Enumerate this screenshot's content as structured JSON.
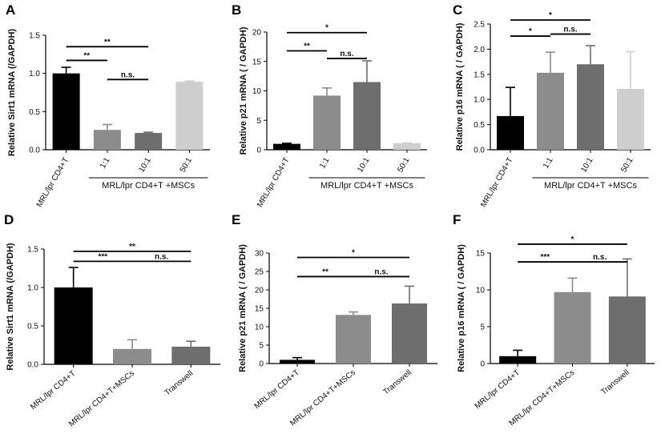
{
  "chart_data": [
    {
      "panel": "A",
      "type": "bar",
      "ylabel": "Relative Sirt1 mRNA (/GAPDH)",
      "yticks": [
        "0.0",
        "0.5",
        "1.0",
        "1.5"
      ],
      "ylim": [
        0,
        1.5
      ],
      "categories": [
        "MRL/lpr CD4+T",
        "1:1",
        "10:1",
        "50:1"
      ],
      "values": [
        1.0,
        0.26,
        0.22,
        0.89
      ],
      "errors": [
        0.08,
        0.07,
        0.01,
        0.01
      ],
      "colors": [
        "#000000",
        "#8c8c8c",
        "#6e6e6e",
        "#cfcfcf"
      ],
      "group_label": "MRL/lpr CD4+T +MSCs",
      "brackets": [
        {
          "from": 0,
          "to": 1,
          "y": 1.17,
          "label": "**"
        },
        {
          "from": 0,
          "to": 2,
          "y": 1.35,
          "label": "**"
        },
        {
          "from": 1,
          "to": 2,
          "y": 0.92,
          "label": "n.s."
        }
      ]
    },
    {
      "panel": "B",
      "type": "bar",
      "ylabel": "Relative p21 mRNA  ( / GAPDH)",
      "yticks": [
        "0",
        "5",
        "10",
        "15",
        "20"
      ],
      "ylim": [
        0,
        20
      ],
      "categories": [
        "MRL/lpr CD4+T",
        "1:1",
        "10:1",
        "50:1"
      ],
      "values": [
        1.0,
        9.2,
        11.5,
        1.1
      ],
      "errors": [
        0.1,
        1.3,
        3.6,
        0.05
      ],
      "colors": [
        "#000000",
        "#8c8c8c",
        "#6e6e6e",
        "#cfcfcf"
      ],
      "group_label": "MRL/lpr CD4+T +MSCs",
      "brackets": [
        {
          "from": 0,
          "to": 1,
          "y": 16.8,
          "label": "**"
        },
        {
          "from": 0,
          "to": 2,
          "y": 19.9,
          "label": "*"
        },
        {
          "from": 1,
          "to": 2,
          "y": 15.5,
          "label": "n.s."
        }
      ]
    },
    {
      "panel": "C",
      "type": "bar",
      "ylabel": "Relative p16 mRNA  ( / GAPDH)",
      "yticks": [
        "0.0",
        "0.5",
        "1.0",
        "1.5",
        "2.0",
        "2.5"
      ],
      "ylim": [
        0,
        2.5
      ],
      "categories": [
        "MRL/lpr CD4+T",
        "1:1",
        "10:1",
        "50:1"
      ],
      "values": [
        0.67,
        1.53,
        1.7,
        1.21
      ],
      "errors": [
        0.57,
        0.41,
        0.37,
        0.74
      ],
      "colors": [
        "#000000",
        "#8c8c8c",
        "#6e6e6e",
        "#cfcfcf"
      ],
      "group_label": "MRL/lpr CD4+T +MSCs",
      "brackets": [
        {
          "from": 0,
          "to": 1,
          "y": 2.26,
          "label": "*"
        },
        {
          "from": 0,
          "to": 2,
          "y": 2.58,
          "label": "*"
        },
        {
          "from": 1,
          "to": 2,
          "y": 2.3,
          "label": "n.s."
        }
      ]
    },
    {
      "panel": "D",
      "type": "bar",
      "ylabel": "Relative Sirt1 mRNA (/GAPDH)",
      "yticks": [
        "0.0",
        "0.5",
        "1.0",
        "1.5"
      ],
      "ylim": [
        0,
        1.5
      ],
      "categories": [
        "MRL/lpr CD4+T",
        "MRL/lpr CD4+T+MSCs",
        "Transwell"
      ],
      "values": [
        1.0,
        0.2,
        0.23
      ],
      "errors": [
        0.26,
        0.12,
        0.07
      ],
      "colors": [
        "#000000",
        "#8c8c8c",
        "#6e6e6e"
      ],
      "brackets": [
        {
          "from": 0,
          "to": 1,
          "y": 1.34,
          "label": "***"
        },
        {
          "from": 0,
          "to": 2,
          "y": 1.47,
          "label": "**"
        },
        {
          "from": 1,
          "to": 2,
          "y": 1.34,
          "label": "n.s."
        }
      ]
    },
    {
      "panel": "E",
      "type": "bar",
      "ylabel": "Relative p21 mRNA  ( / GAPDH)",
      "yticks": [
        "0",
        "5",
        "10",
        "15",
        "20",
        "25",
        "30"
      ],
      "ylim": [
        0,
        30
      ],
      "categories": [
        "MRL/lpr CD4+T",
        "MRL/lpr CD4+T+MSCs",
        "Transwell"
      ],
      "values": [
        1.0,
        13.2,
        16.3
      ],
      "errors": [
        0.6,
        0.8,
        4.7
      ],
      "colors": [
        "#000000",
        "#8c8c8c",
        "#6e6e6e"
      ],
      "brackets": [
        {
          "from": 0,
          "to": 1,
          "y": 23.6,
          "label": "**"
        },
        {
          "from": 0,
          "to": 2,
          "y": 28.8,
          "label": "*"
        },
        {
          "from": 1,
          "to": 2,
          "y": 23.6,
          "label": "n.s."
        }
      ]
    },
    {
      "panel": "F",
      "type": "bar",
      "ylabel": "Relative p16 mRNA  ( / GAPDH)",
      "yticks": [
        "0",
        "5",
        "10",
        "15"
      ],
      "ylim": [
        0,
        15
      ],
      "categories": [
        "MRL/lpr CD4+T",
        "MRL/lpr CD4+T+MSCs",
        "Transwell"
      ],
      "values": [
        1.0,
        9.7,
        9.1
      ],
      "errors": [
        0.8,
        1.9,
        5.1
      ],
      "colors": [
        "#000000",
        "#8c8c8c",
        "#6e6e6e"
      ],
      "brackets": [
        {
          "from": 0,
          "to": 1,
          "y": 13.8,
          "label": "***"
        },
        {
          "from": 0,
          "to": 2,
          "y": 16.2,
          "label": "*"
        },
        {
          "from": 1,
          "to": 2,
          "y": 13.8,
          "label": "n.s."
        }
      ]
    }
  ]
}
